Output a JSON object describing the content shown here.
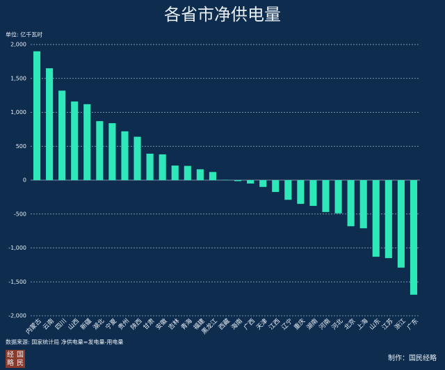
{
  "chart_data": {
    "type": "bar",
    "title": "各省市净供电量",
    "unit_label": "单位: 亿千瓦时",
    "categories": [
      "内蒙古",
      "云南",
      "四川",
      "山西",
      "新疆",
      "湖北",
      "宁夏",
      "贵州",
      "陕西",
      "甘肃",
      "安徽",
      "吉林",
      "青海",
      "福建",
      "黑龙江",
      "西藏",
      "海南",
      "广西",
      "天津",
      "江西",
      "辽宁",
      "重庆",
      "湖南",
      "河南",
      "河北",
      "北京",
      "上海",
      "山东",
      "江苏",
      "浙江",
      "广东"
    ],
    "values": [
      1900,
      1650,
      1320,
      1160,
      1120,
      870,
      840,
      720,
      640,
      390,
      380,
      215,
      210,
      160,
      120,
      5,
      -15,
      -50,
      -100,
      -175,
      -290,
      -350,
      -380,
      -470,
      -490,
      -680,
      -710,
      -1130,
      -1150,
      -1290,
      -1690
    ],
    "color": "#2ee8b9",
    "ylim": [
      -2000,
      2000
    ],
    "yticks": [
      {
        "value": -2000,
        "label": "-2,000"
      },
      {
        "value": -1500,
        "label": "-1,500"
      },
      {
        "value": -1000,
        "label": "-1,000"
      },
      -500,
      0,
      500,
      {
        "value": 1000,
        "label": "1,000"
      },
      {
        "value": 1500,
        "label": "1,500"
      },
      {
        "value": 2000,
        "label": "2,000"
      }
    ],
    "grid": true,
    "source": "数据来源: 国家统计局   净供电量=发电量-用电量",
    "credit": "制作：国民经略",
    "logo": [
      "经",
      "国",
      "略",
      "民"
    ]
  }
}
